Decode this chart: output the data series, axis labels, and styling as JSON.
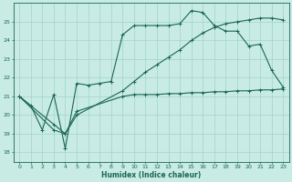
{
  "xlabel": "Humidex (Indice chaleur)",
  "xlim": [
    -0.5,
    23.5
  ],
  "ylim": [
    17.5,
    26.0
  ],
  "yticks": [
    18,
    19,
    20,
    21,
    22,
    23,
    24,
    25
  ],
  "xticks": [
    0,
    1,
    2,
    3,
    4,
    5,
    6,
    7,
    8,
    9,
    10,
    11,
    12,
    13,
    14,
    15,
    16,
    17,
    18,
    19,
    20,
    21,
    22,
    23
  ],
  "background_color": "#c8ebe4",
  "grid_color": "#a0d4cc",
  "line_color": "#1a6655",
  "lines": [
    {
      "x": [
        0,
        1,
        2,
        3,
        4,
        5,
        6,
        7,
        8,
        9,
        10,
        11,
        12,
        13,
        14,
        15,
        16,
        17,
        18,
        19,
        20,
        21,
        22,
        23
      ],
      "y": [
        21.0,
        20.5,
        19.2,
        21.1,
        18.2,
        21.7,
        21.6,
        21.7,
        21.8,
        24.3,
        24.8,
        24.8,
        24.8,
        24.8,
        24.9,
        25.6,
        25.5,
        24.8,
        24.5,
        24.5,
        23.7,
        23.8,
        22.4,
        21.5
      ]
    },
    {
      "x": [
        0,
        3,
        4,
        5,
        9,
        10,
        11,
        12,
        13,
        14,
        15,
        16,
        17,
        18,
        19,
        20,
        21,
        22,
        23
      ],
      "y": [
        21.0,
        19.5,
        19.0,
        20.0,
        21.3,
        21.8,
        22.3,
        22.7,
        23.1,
        23.5,
        24.0,
        24.4,
        24.7,
        24.9,
        25.0,
        25.1,
        25.2,
        25.2,
        25.1
      ]
    },
    {
      "x": [
        0,
        3,
        4,
        5,
        9,
        10,
        11,
        12,
        13,
        14,
        15,
        16,
        17,
        18,
        19,
        20,
        21,
        22,
        23
      ],
      "y": [
        21.0,
        19.2,
        19.0,
        20.2,
        21.0,
        21.1,
        21.1,
        21.1,
        21.15,
        21.15,
        21.2,
        21.2,
        21.25,
        21.25,
        21.3,
        21.3,
        21.35,
        21.35,
        21.4
      ]
    }
  ]
}
